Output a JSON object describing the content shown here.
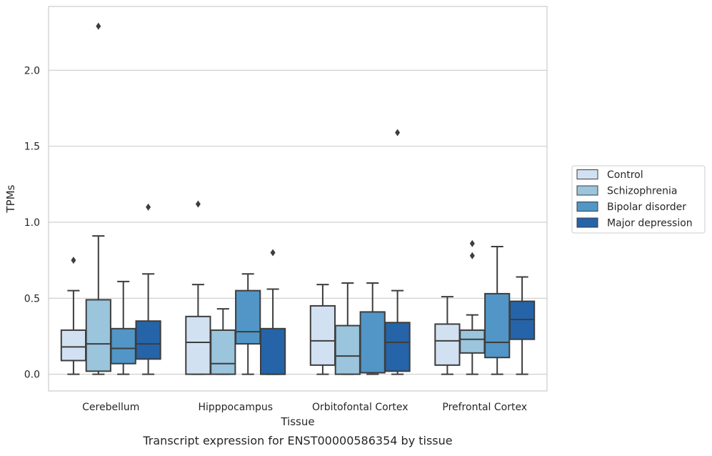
{
  "chart_data": {
    "type": "boxplot",
    "title": "Transcript expression for ENST00000586354 by tissue",
    "xlabel": "Tissue",
    "ylabel": "TPMs",
    "ylim": [
      -0.11,
      2.42
    ],
    "yticks": [
      0.0,
      0.5,
      1.0,
      1.5,
      2.0
    ],
    "ytick_labels": [
      "0.0",
      "0.5",
      "1.0",
      "1.5",
      "2.0"
    ],
    "grid": "horizontal",
    "legend_position": "right-center",
    "categories": [
      "Cerebellum",
      "Hipppocampus",
      "Orbitofontal Cortex",
      "Prefrontal Cortex"
    ],
    "series": [
      {
        "name": "Control",
        "color": "#d2e1f1",
        "boxes": [
          {
            "whislo": 0.0,
            "q1": 0.09,
            "med": 0.18,
            "q3": 0.29,
            "whishi": 0.55,
            "fliers": [
              0.75
            ]
          },
          {
            "whislo": 0.0,
            "q1": 0.0,
            "med": 0.21,
            "q3": 0.38,
            "whishi": 0.59,
            "fliers": [
              1.12
            ]
          },
          {
            "whislo": 0.0,
            "q1": 0.06,
            "med": 0.22,
            "q3": 0.45,
            "whishi": 0.59,
            "fliers": []
          },
          {
            "whislo": 0.0,
            "q1": 0.06,
            "med": 0.22,
            "q3": 0.33,
            "whishi": 0.51,
            "fliers": []
          }
        ]
      },
      {
        "name": "Schizophrenia",
        "color": "#9bc4dd",
        "boxes": [
          {
            "whislo": 0.0,
            "q1": 0.02,
            "med": 0.2,
            "q3": 0.49,
            "whishi": 0.91,
            "fliers": [
              2.29
            ]
          },
          {
            "whislo": 0.0,
            "q1": 0.0,
            "med": 0.07,
            "q3": 0.29,
            "whishi": 0.43,
            "fliers": []
          },
          {
            "whislo": 0.0,
            "q1": 0.0,
            "med": 0.12,
            "q3": 0.32,
            "whishi": 0.6,
            "fliers": []
          },
          {
            "whislo": 0.0,
            "q1": 0.14,
            "med": 0.23,
            "q3": 0.29,
            "whishi": 0.39,
            "fliers": [
              0.78,
              0.86
            ]
          }
        ]
      },
      {
        "name": "Bipolar disorder",
        "color": "#5196c6",
        "boxes": [
          {
            "whislo": 0.0,
            "q1": 0.07,
            "med": 0.17,
            "q3": 0.3,
            "whishi": 0.61,
            "fliers": []
          },
          {
            "whislo": 0.0,
            "q1": 0.2,
            "med": 0.28,
            "q3": 0.55,
            "whishi": 0.66,
            "fliers": []
          },
          {
            "whislo": 0.0,
            "q1": 0.01,
            "med": 0.01,
            "q3": 0.41,
            "whishi": 0.6,
            "fliers": []
          },
          {
            "whislo": 0.0,
            "q1": 0.11,
            "med": 0.21,
            "q3": 0.53,
            "whishi": 0.84,
            "fliers": []
          }
        ]
      },
      {
        "name": "Major depression",
        "color": "#2564a8",
        "boxes": [
          {
            "whislo": 0.0,
            "q1": 0.1,
            "med": 0.2,
            "q3": 0.35,
            "whishi": 0.66,
            "fliers": [
              1.1
            ]
          },
          {
            "whislo": 0.0,
            "q1": 0.0,
            "med": 0.0,
            "q3": 0.3,
            "whishi": 0.56,
            "fliers": [
              0.8
            ]
          },
          {
            "whislo": 0.0,
            "q1": 0.02,
            "med": 0.21,
            "q3": 0.34,
            "whishi": 0.55,
            "fliers": [
              1.59
            ]
          },
          {
            "whislo": 0.0,
            "q1": 0.23,
            "med": 0.36,
            "q3": 0.48,
            "whishi": 0.64,
            "fliers": []
          }
        ]
      }
    ]
  }
}
